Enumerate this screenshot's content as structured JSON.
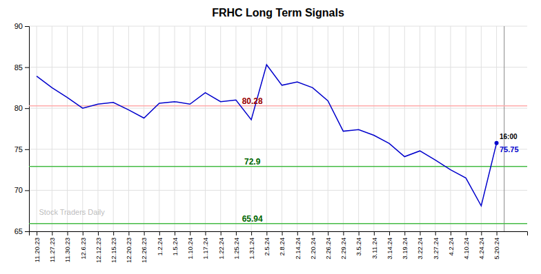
{
  "chart_data": {
    "type": "line",
    "title": "FRHC Long Term Signals",
    "categories": [
      "11.20.23",
      "11.27.23",
      "11.30.23",
      "12.6.23",
      "12.12.23",
      "12.15.23",
      "12.20.23",
      "12.26.23",
      "1.2.24",
      "1.5.24",
      "1.10.24",
      "1.17.24",
      "1.22.24",
      "1.25.24",
      "1.31.24",
      "2.5.24",
      "2.8.24",
      "2.14.24",
      "2.20.24",
      "2.26.24",
      "2.29.24",
      "3.5.24",
      "3.11.24",
      "3.14.24",
      "3.19.24",
      "3.22.24",
      "3.27.24",
      "4.2.24",
      "4.10.24",
      "4.24.24",
      "5.20.24"
    ],
    "series": [
      {
        "color": "#0000cc",
        "values": [
          83.9,
          82.5,
          81.3,
          80.0,
          80.5,
          80.7,
          79.8,
          78.8,
          80.6,
          80.8,
          80.5,
          81.9,
          80.8,
          81.0,
          78.6,
          85.3,
          82.8,
          83.2,
          82.5,
          80.9,
          77.2,
          77.4,
          76.7,
          75.7,
          74.1,
          74.8,
          73.7,
          72.5,
          71.5,
          68.1,
          75.75
        ]
      }
    ],
    "reference_lines": [
      {
        "value": 80.28,
        "label": "80.28",
        "color": "#ffaaaa",
        "label_color": "#990000"
      },
      {
        "value": 72.9,
        "label": "72.9",
        "color": "#44bb44",
        "label_color": "#006600"
      },
      {
        "value": 65.94,
        "label": "65.94",
        "color": "#44bb44",
        "label_color": "#006600"
      }
    ],
    "last_point_labels": [
      "16:00",
      "75.75"
    ],
    "watermark": "Stock Traders Daily",
    "ylim": [
      65,
      90
    ],
    "yticks": [
      65,
      70,
      75,
      80,
      85,
      90
    ],
    "grid": true
  }
}
